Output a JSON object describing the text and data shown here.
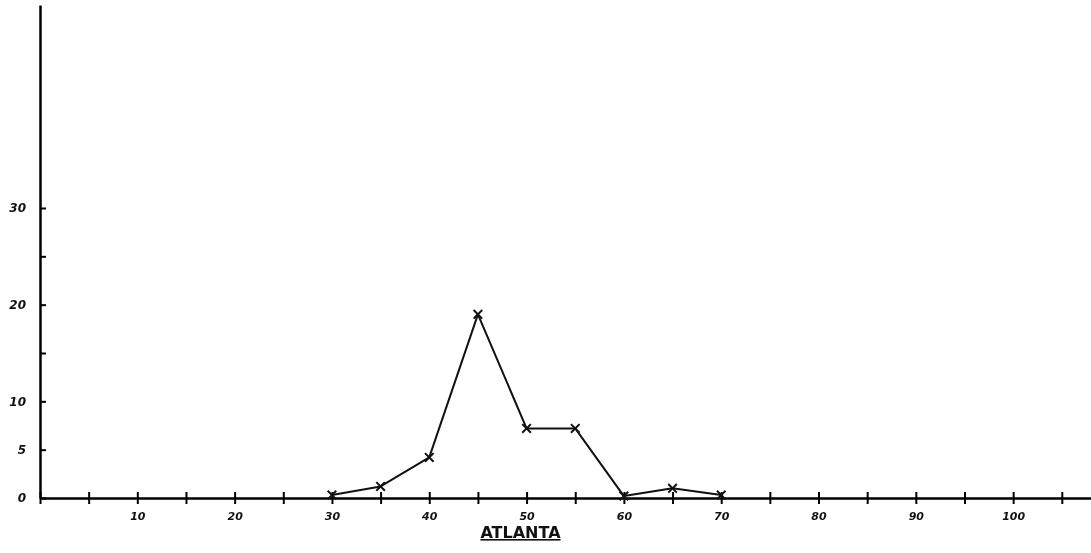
{
  "chart_data": {
    "type": "line",
    "xlabel": "ATLANTA",
    "x": [
      30,
      35,
      40,
      45,
      50,
      55,
      60,
      65,
      70
    ],
    "values": [
      0.3,
      1.2,
      4.2,
      19,
      7.2,
      7.2,
      0.2,
      1,
      0.3
    ],
    "color": "#111111",
    "marker": "cross",
    "line_style": "solid",
    "grid": false,
    "xlim": [
      0,
      108
    ],
    "ylim": [
      0,
      51
    ],
    "xticks": [
      {
        "value": 0,
        "label": null
      },
      {
        "value": 5,
        "label": null
      },
      10,
      {
        "value": 15,
        "label": null
      },
      20,
      {
        "value": 25,
        "label": null
      },
      30,
      {
        "value": 35,
        "label": null
      },
      40,
      {
        "value": 45,
        "label": null
      },
      50,
      {
        "value": 55,
        "label": null
      },
      60,
      {
        "value": 65,
        "label": null
      },
      70,
      {
        "value": 75,
        "label": null
      },
      80,
      {
        "value": 85,
        "label": null
      },
      90,
      {
        "value": 95,
        "label": null
      },
      100,
      {
        "value": 105,
        "label": null
      }
    ],
    "yticks": [
      0,
      5,
      10,
      {
        "value": 15,
        "label": null
      },
      20,
      {
        "value": 25,
        "label": null
      },
      30
    ]
  }
}
